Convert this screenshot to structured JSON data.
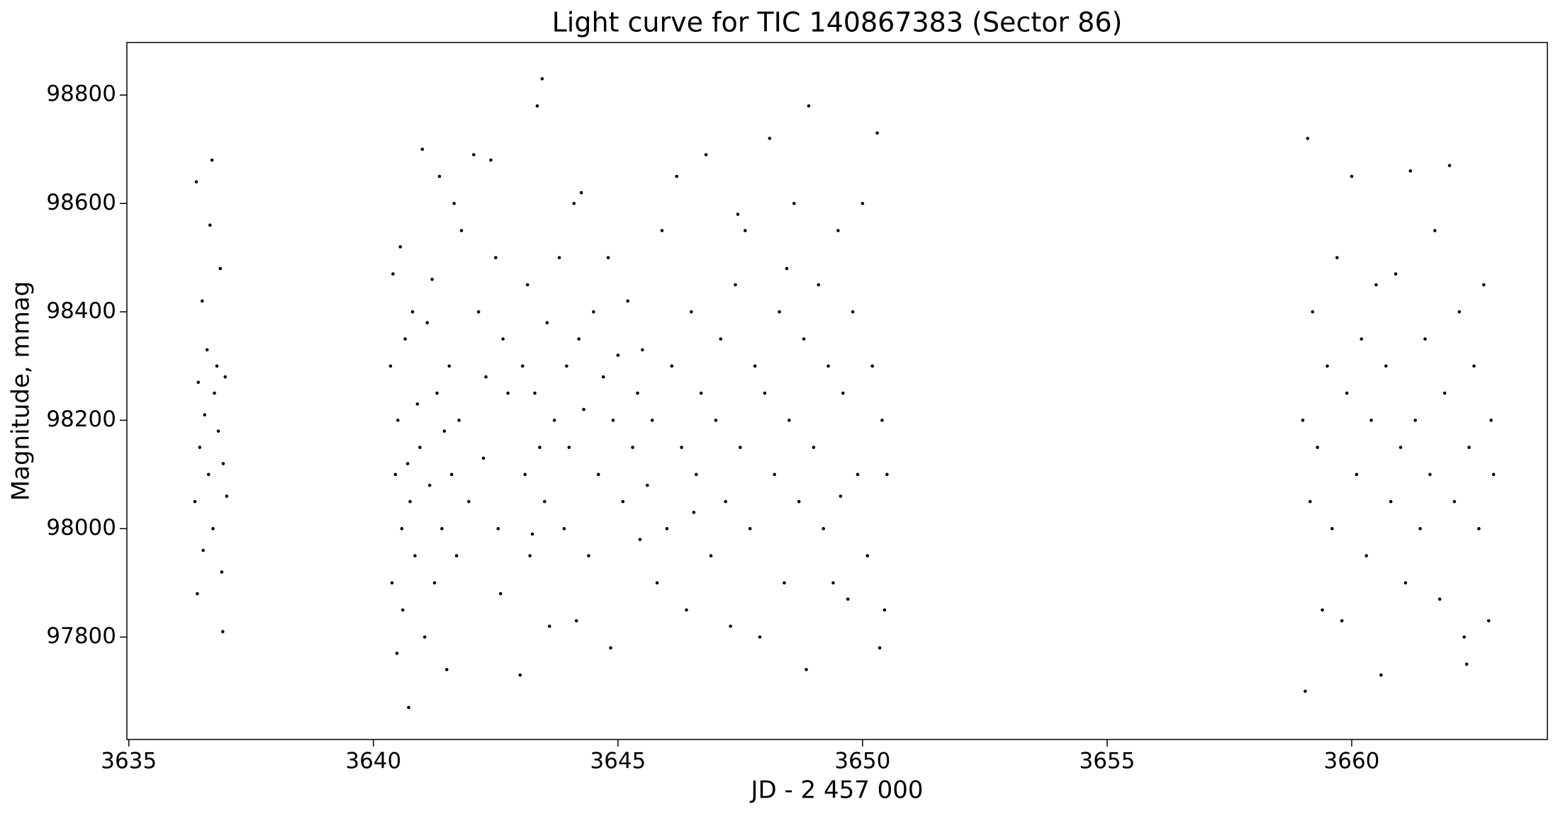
{
  "chart_data": {
    "type": "scatter",
    "title": "Light curve for TIC 140867383 (Sector 86)",
    "xlabel": "JD - 2 457 000",
    "ylabel": "Magnitude, mmag",
    "color": "#000000",
    "xlim": [
      3634.96,
      3664.0
    ],
    "ylim": [
      97611,
      98897
    ],
    "xticks": [
      3635,
      3640,
      3645,
      3650,
      3655,
      3660
    ],
    "yticks": [
      97800,
      98000,
      98200,
      98400,
      98600,
      98800
    ],
    "grid": false,
    "x": [
      3636.35,
      3636.38,
      3636.4,
      3636.42,
      3636.45,
      3636.5,
      3636.52,
      3636.55,
      3636.6,
      3636.63,
      3636.66,
      3636.7,
      3636.72,
      3636.75,
      3636.8,
      3636.83,
      3636.87,
      3636.9,
      3636.93,
      3636.97,
      3637.0,
      3636.92,
      3640.35,
      3640.38,
      3640.4,
      3640.45,
      3640.48,
      3640.5,
      3640.55,
      3640.58,
      3640.6,
      3640.65,
      3640.7,
      3640.72,
      3640.75,
      3640.8,
      3640.85,
      3640.9,
      3640.95,
      3641.0,
      3641.05,
      3641.1,
      3641.15,
      3641.2,
      3641.25,
      3641.3,
      3641.35,
      3641.4,
      3641.45,
      3641.5,
      3641.55,
      3641.6,
      3641.65,
      3641.7,
      3641.75,
      3641.8,
      3641.95,
      3642.05,
      3642.15,
      3642.25,
      3642.3,
      3642.4,
      3642.5,
      3642.55,
      3642.6,
      3642.65,
      3642.75,
      3643.0,
      3643.05,
      3643.1,
      3643.15,
      3643.2,
      3643.3,
      3643.35,
      3643.4,
      3643.45,
      3643.5,
      3643.55,
      3643.6,
      3643.7,
      3643.8,
      3643.9,
      3643.95,
      3644.0,
      3644.1,
      3644.15,
      3644.2,
      3644.3,
      3644.4,
      3644.5,
      3644.6,
      3644.7,
      3644.8,
      3644.85,
      3644.9,
      3645.0,
      3645.1,
      3645.2,
      3645.3,
      3645.4,
      3645.5,
      3645.6,
      3645.7,
      3645.8,
      3645.9,
      3646.0,
      3646.1,
      3646.2,
      3646.3,
      3646.4,
      3646.5,
      3646.6,
      3646.7,
      3646.8,
      3646.9,
      3647.0,
      3647.1,
      3647.2,
      3647.3,
      3647.4,
      3647.5,
      3647.6,
      3647.7,
      3647.8,
      3647.9,
      3648.0,
      3648.1,
      3648.2,
      3648.3,
      3648.4,
      3648.5,
      3648.6,
      3648.7,
      3648.8,
      3648.85,
      3648.9,
      3649.0,
      3649.1,
      3649.2,
      3649.3,
      3649.4,
      3649.5,
      3649.6,
      3649.7,
      3649.8,
      3649.9,
      3650.0,
      3650.1,
      3650.2,
      3650.3,
      3650.35,
      3650.4,
      3650.45,
      3650.5,
      3643.25,
      3644.25,
      3645.45,
      3646.55,
      3647.45,
      3648.45,
      3649.55,
      3659.0,
      3659.05,
      3659.1,
      3659.15,
      3659.2,
      3659.3,
      3659.4,
      3659.5,
      3659.6,
      3659.7,
      3659.8,
      3659.9,
      3660.0,
      3660.1,
      3660.2,
      3660.3,
      3660.4,
      3660.5,
      3660.6,
      3660.7,
      3660.8,
      3660.9,
      3661.0,
      3661.1,
      3661.2,
      3661.3,
      3661.4,
      3661.5,
      3661.6,
      3661.7,
      3661.8,
      3661.9,
      3662.0,
      3662.1,
      3662.2,
      3662.3,
      3662.35,
      3662.4,
      3662.5,
      3662.6,
      3662.7,
      3662.8,
      3662.85,
      3662.9
    ],
    "values": [
      98050,
      98640,
      97880,
      98270,
      98150,
      98420,
      97960,
      98210,
      98330,
      98100,
      98560,
      98680,
      98000,
      98250,
      98300,
      98180,
      98480,
      97920,
      98120,
      98280,
      98060,
      97810,
      98300,
      97900,
      98470,
      98100,
      97770,
      98200,
      98520,
      98000,
      97850,
      98350,
      98120,
      97670,
      98050,
      98400,
      97950,
      98230,
      98150,
      98700,
      97800,
      98380,
      98080,
      98460,
      97900,
      98250,
      98650,
      98000,
      98180,
      97740,
      98300,
      98100,
      98600,
      97950,
      98200,
      98550,
      98050,
      98690,
      98400,
      98130,
      98280,
      98680,
      98500,
      98000,
      97880,
      98350,
      98250,
      97730,
      98300,
      98100,
      98450,
      97950,
      98250,
      98780,
      98150,
      98830,
      98050,
      98380,
      97820,
      98200,
      98500,
      98000,
      98300,
      98150,
      98600,
      97830,
      98350,
      98220,
      97950,
      98400,
      98100,
      98280,
      98500,
      97780,
      98200,
      98320,
      98050,
      98420,
      98150,
      98250,
      98330,
      98080,
      98200,
      97900,
      98550,
      98000,
      98300,
      98650,
      98150,
      97850,
      98400,
      98100,
      98250,
      98690,
      97950,
      98200,
      98350,
      98050,
      97820,
      98450,
      98150,
      98550,
      98000,
      98300,
      97800,
      98250,
      98720,
      98100,
      98400,
      97900,
      98200,
      98600,
      98050,
      98350,
      97740,
      98780,
      98150,
      98450,
      98000,
      98300,
      97900,
      98550,
      98250,
      97870,
      98400,
      98100,
      98600,
      97950,
      98300,
      98730,
      97780,
      98200,
      97850,
      98100,
      97990,
      98620,
      97980,
      98030,
      98580,
      98480,
      98060,
      98200,
      97700,
      98720,
      98050,
      98400,
      98150,
      97850,
      98300,
      98000,
      98500,
      97830,
      98250,
      98650,
      98100,
      98350,
      97950,
      98200,
      98450,
      97730,
      98300,
      98050,
      98470,
      98150,
      97900,
      98660,
      98200,
      98000,
      98350,
      98100,
      98550,
      97870,
      98250,
      98670,
      98050,
      98400,
      97800,
      97750,
      98150,
      98300,
      98000,
      98450,
      97830,
      98200,
      98100
    ]
  }
}
